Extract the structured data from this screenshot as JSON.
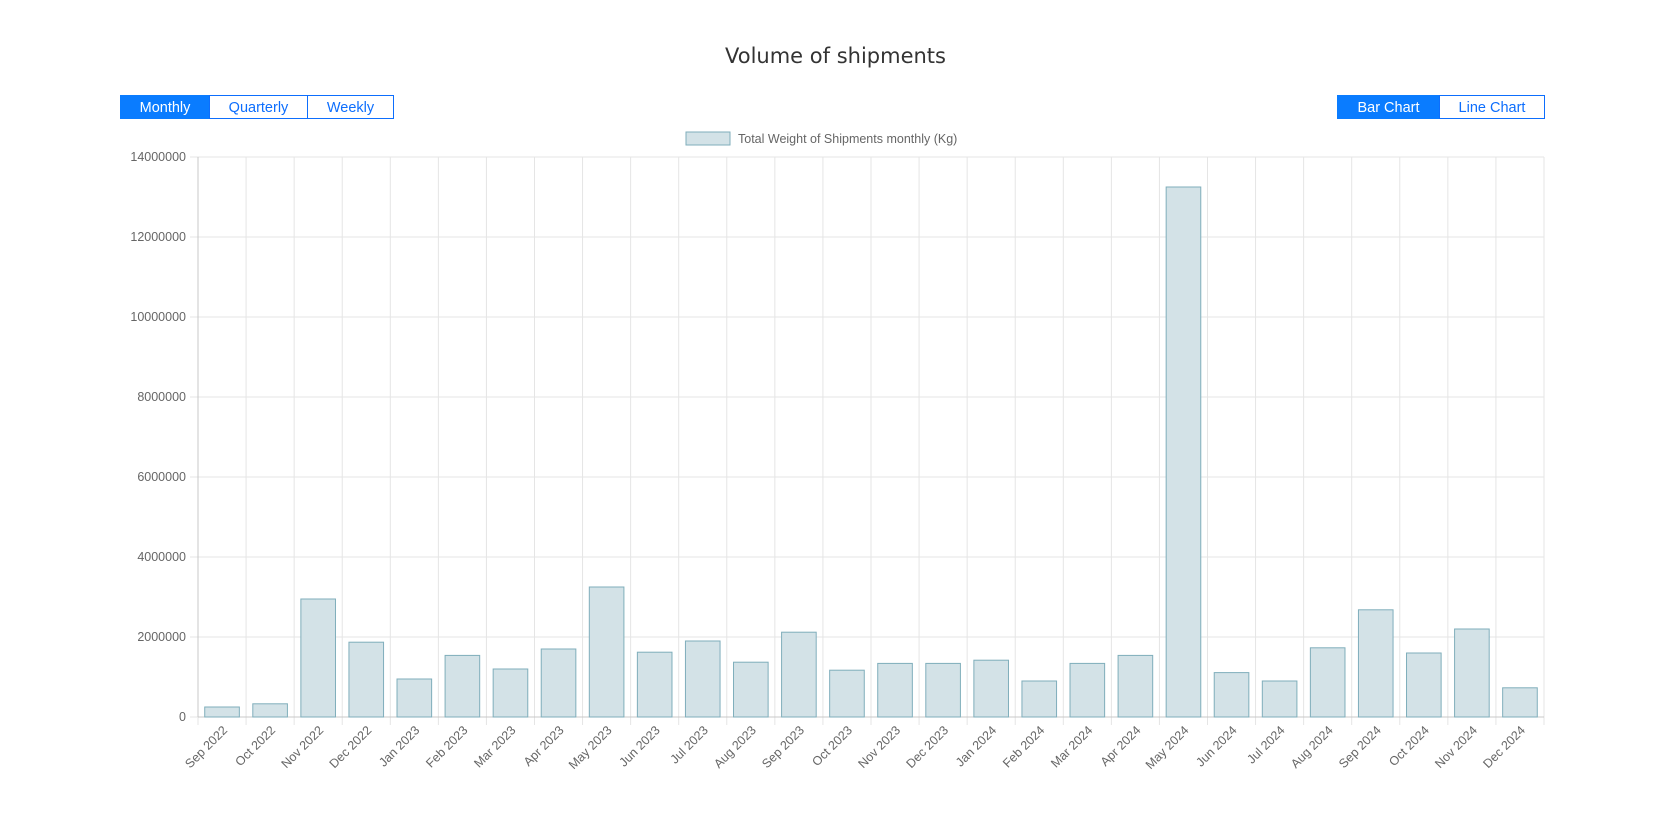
{
  "title": "Volume of shipments",
  "period_buttons": [
    {
      "label": "Monthly",
      "active": true
    },
    {
      "label": "Quarterly",
      "active": false
    },
    {
      "label": "Weekly",
      "active": false
    }
  ],
  "chart_type_buttons": [
    {
      "label": "Bar Chart",
      "active": true
    },
    {
      "label": "Line Chart",
      "active": false
    }
  ],
  "colors": {
    "accent": "#0a7cff",
    "bar_fill": "#d3e2e7",
    "bar_stroke": "#7faebb",
    "grid": "#e5e5e5",
    "tick_text": "#666666"
  },
  "chart_data": {
    "type": "bar",
    "title": "",
    "xlabel": "",
    "ylabel": "",
    "ylim": [
      0,
      14000000
    ],
    "yticks": [
      0,
      2000000,
      4000000,
      6000000,
      8000000,
      10000000,
      12000000,
      14000000
    ],
    "grid": true,
    "legend_position": "top-center",
    "categories": [
      "Sep 2022",
      "Oct 2022",
      "Nov 2022",
      "Dec 2022",
      "Jan 2023",
      "Feb 2023",
      "Mar 2023",
      "Apr 2023",
      "May 2023",
      "Jun 2023",
      "Jul 2023",
      "Aug 2023",
      "Sep 2023",
      "Oct 2023",
      "Nov 2023",
      "Dec 2023",
      "Jan 2024",
      "Feb 2024",
      "Mar 2024",
      "Apr 2024",
      "May 2024",
      "Jun 2024",
      "Jul 2024",
      "Aug 2024",
      "Sep 2024",
      "Oct 2024",
      "Nov 2024",
      "Dec 2024"
    ],
    "series": [
      {
        "name": "Total Weight of Shipments monthly (Kg)",
        "values": [
          250000,
          330000,
          2950000,
          1870000,
          950000,
          1540000,
          1200000,
          1700000,
          3250000,
          1620000,
          1900000,
          1370000,
          2120000,
          1170000,
          1340000,
          1340000,
          1420000,
          900000,
          1340000,
          1540000,
          13250000,
          1110000,
          900000,
          1730000,
          2680000,
          1600000,
          2200000,
          730000
        ]
      }
    ]
  }
}
